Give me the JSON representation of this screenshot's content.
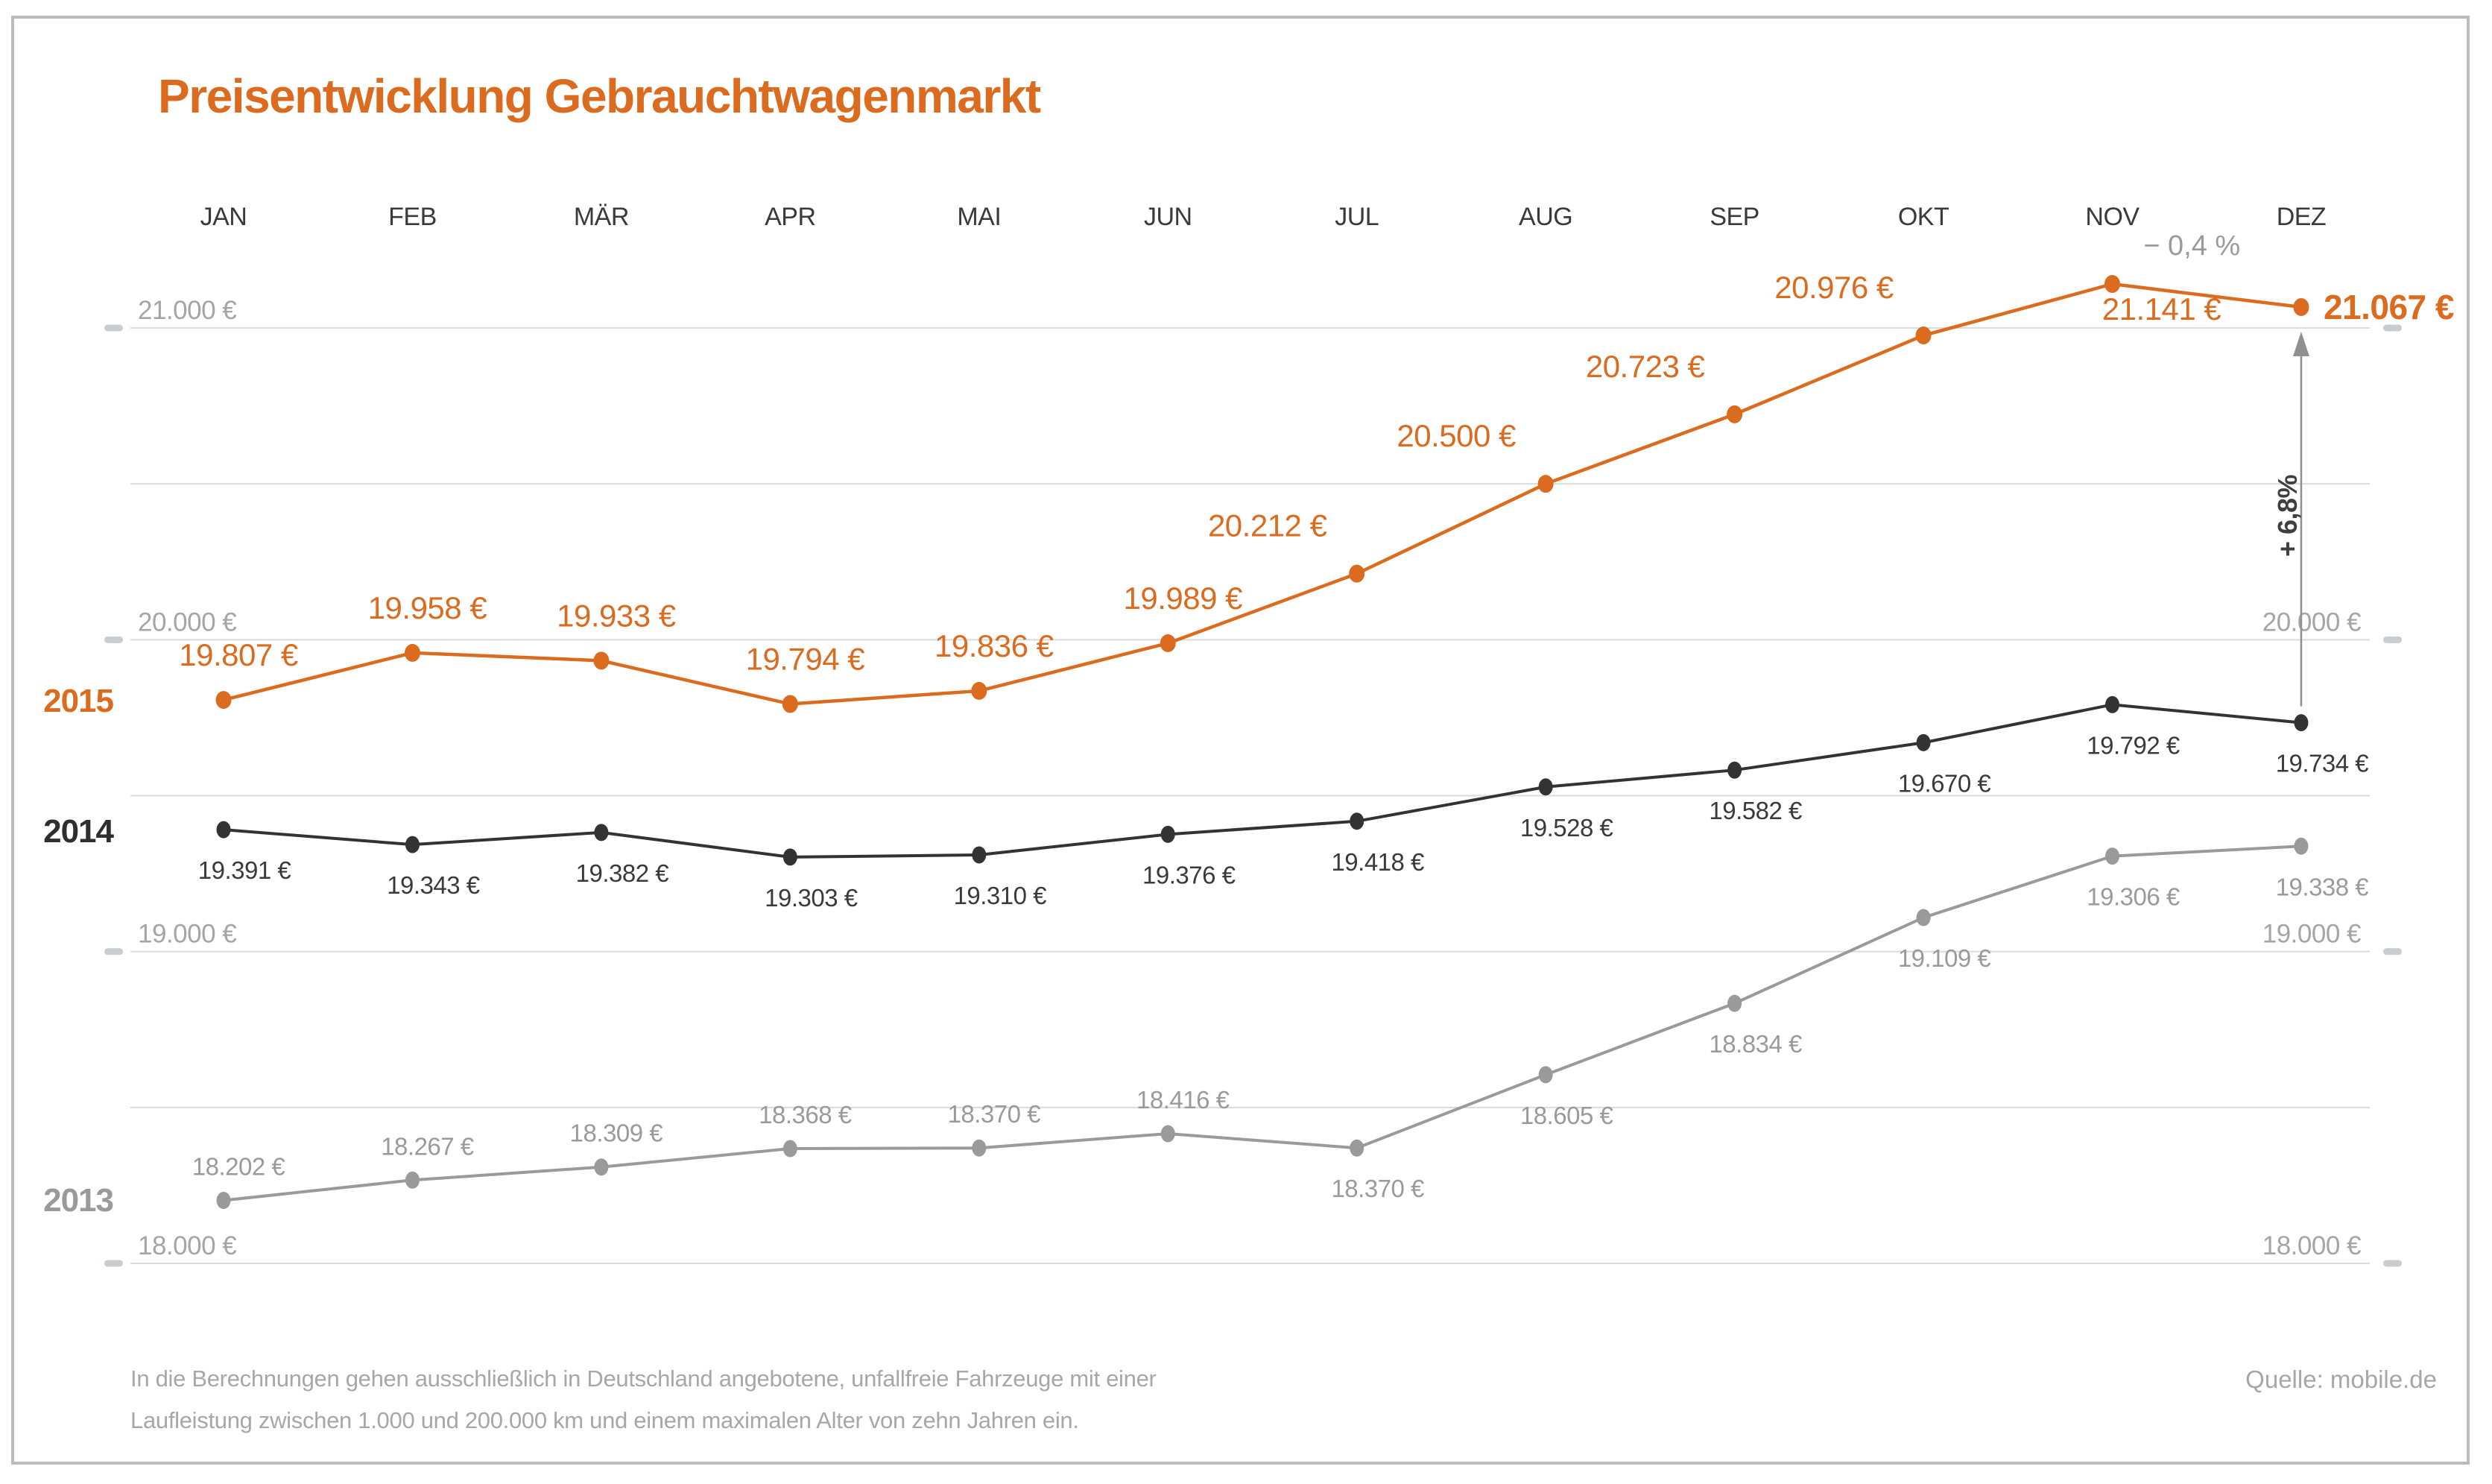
{
  "title": "Preisentwicklung Gebrauchtwagenmarkt",
  "source": "Quelle: mobile.de",
  "footnote": {
    "line1": "In die Berechnungen gehen ausschließlich in Deutschland angebotene, unfallfreie Fahrzeuge mit einer",
    "line2": "Laufleistung zwischen 1.000 und 200.000 km und einem maximalen Alter von zehn Jahren ein."
  },
  "colors": {
    "accent_orange": "#db6b1e",
    "dark": "#333333",
    "series_gray": "#9a9a9a",
    "axis_text": "#a5a5a5",
    "gridline": "#dbdbdb",
    "tick": "#c9cdd0",
    "month_text": "#3a3a3a",
    "arrow": "#909090",
    "annotation_dark": "#3f3f3f",
    "annotation_gray": "#9a9a9a"
  },
  "chart_data": {
    "type": "line",
    "title": "Preisentwicklung Gebrauchtwagenmarkt",
    "categories": [
      "JAN",
      "FEB",
      "MÄR",
      "APR",
      "MAI",
      "JUN",
      "JUL",
      "AUG",
      "SEP",
      "OKT",
      "NOV",
      "DEZ"
    ],
    "ylim": [
      18000,
      21200
    ],
    "grid": true,
    "gridline_step": 500,
    "y_ticks": [
      {
        "value": 21000,
        "left_label": "21.000 €",
        "right_label": ""
      },
      {
        "value": 20000,
        "left_label": "20.000 €",
        "right_label": "20.000 €"
      },
      {
        "value": 19000,
        "left_label": "19.000 €",
        "right_label": "19.000 €"
      },
      {
        "value": 18000,
        "left_label": "18.000 €",
        "right_label": "18.000 €"
      }
    ],
    "series": [
      {
        "name": "2015",
        "color": "#db6b1e",
        "values": [
          19807,
          19958,
          19933,
          19794,
          19836,
          19989,
          20212,
          20500,
          20723,
          20976,
          21141,
          21067
        ],
        "labels": [
          "19.807 €",
          "19.958 €",
          "19.933 €",
          "19.794 €",
          "19.836 €",
          "19.989 €",
          "20.212 €",
          "20.500 €",
          "20.723 €",
          "20.976 €",
          "21.141 €",
          "21.067 €"
        ],
        "label_pos": [
          "above",
          "above",
          "above",
          "above",
          "above",
          "above",
          "above-left",
          "above-left",
          "above-left",
          "above-left",
          "below-right",
          "right"
        ],
        "label_size": "large"
      },
      {
        "name": "2014",
        "color": "#333333",
        "values": [
          19391,
          19343,
          19382,
          19303,
          19310,
          19376,
          19418,
          19528,
          19582,
          19670,
          19792,
          19734
        ],
        "labels": [
          "19.391 €",
          "19.343 €",
          "19.382 €",
          "19.303 €",
          "19.310 €",
          "19.376 €",
          "19.418 €",
          "19.528 €",
          "19.582 €",
          "19.670 €",
          "19.792 €",
          "19.734 €"
        ],
        "label_pos": [
          "below",
          "below",
          "below",
          "below",
          "below",
          "below",
          "below",
          "below",
          "below",
          "below",
          "below",
          "below"
        ],
        "label_size": "small"
      },
      {
        "name": "2013",
        "color": "#9a9a9a",
        "values": [
          18202,
          18267,
          18309,
          18368,
          18370,
          18416,
          18370,
          18605,
          18834,
          19109,
          19306,
          19338
        ],
        "labels": [
          "18.202 €",
          "18.267 €",
          "18.309 €",
          "18.368 €",
          "18.370 €",
          "18.416 €",
          "18.370 €",
          "18.605 €",
          "18.834 €",
          "19.109 €",
          "19.306 €",
          "19.338 €"
        ],
        "label_pos": [
          "above",
          "above",
          "above",
          "above",
          "above",
          "above",
          "below",
          "below",
          "below",
          "below",
          "below",
          "below"
        ],
        "label_size": "small"
      }
    ],
    "annotations": {
      "nov_change_label": "− 0,4 %",
      "dec_change_label": "+ 6,8%"
    }
  }
}
